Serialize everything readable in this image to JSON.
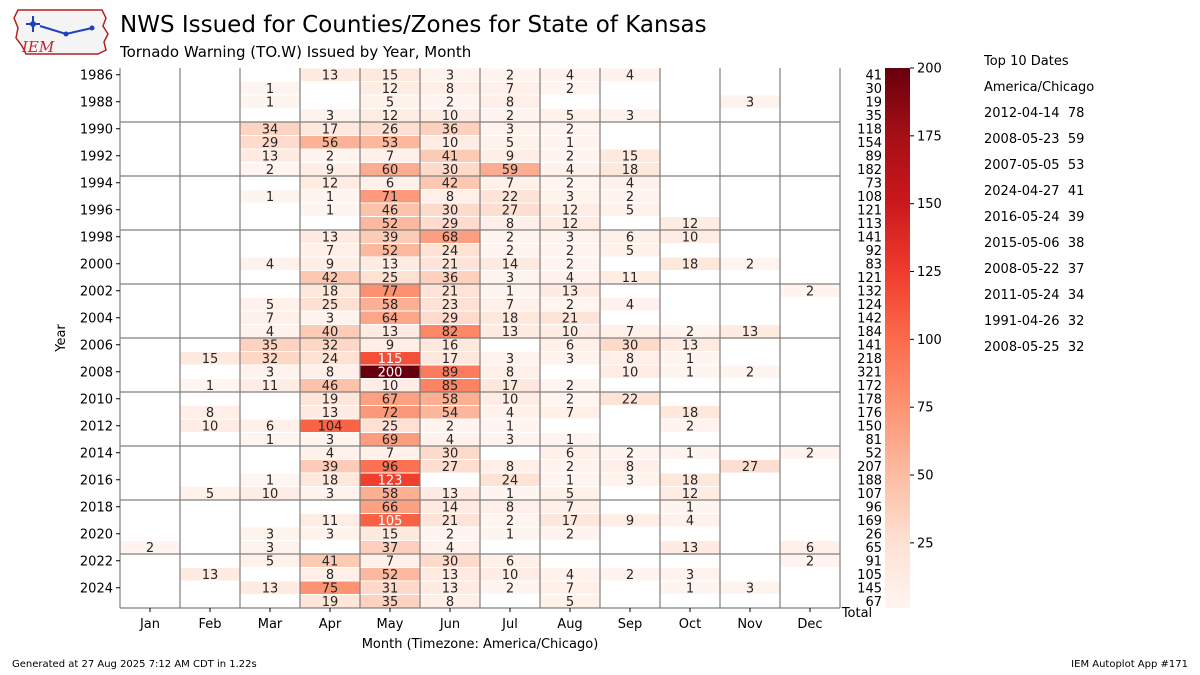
{
  "header": {
    "title": "NWS Issued for Counties/Zones for State of Kansas",
    "subtitle": "Tornado Warning (TO.W) Issued by Year, Month",
    "logo_text": "IEM"
  },
  "top10": {
    "heading": "Top 10 Dates",
    "timezone": "America/Chicago",
    "entries": [
      {
        "date": "2012-04-14",
        "count": 78
      },
      {
        "date": "2008-05-23",
        "count": 59
      },
      {
        "date": "2007-05-05",
        "count": 53
      },
      {
        "date": "2024-04-27",
        "count": 41
      },
      {
        "date": "2016-05-24",
        "count": 39
      },
      {
        "date": "2015-05-06",
        "count": 38
      },
      {
        "date": "2008-05-22",
        "count": 37
      },
      {
        "date": "2011-05-24",
        "count": 34
      },
      {
        "date": "1991-04-26",
        "count": 32
      },
      {
        "date": "2008-05-25",
        "count": 32
      }
    ]
  },
  "footer": {
    "generated": "Generated at 27 Aug 2025 7:12 AM CDT in 1.22s",
    "app": "IEM Autoplot App #171"
  },
  "chart_data": {
    "type": "heatmap",
    "xlabel": "Month (Timezone: America/Chicago)",
    "ylabel": "Year",
    "months": [
      "Jan",
      "Feb",
      "Mar",
      "Apr",
      "May",
      "Jun",
      "Jul",
      "Aug",
      "Sep",
      "Oct",
      "Nov",
      "Dec"
    ],
    "total_label": "Total",
    "years": [
      1986,
      1987,
      1988,
      1989,
      1990,
      1991,
      1992,
      1993,
      1994,
      1995,
      1996,
      1997,
      1998,
      1999,
      2000,
      2001,
      2002,
      2003,
      2004,
      2005,
      2006,
      2007,
      2008,
      2009,
      2010,
      2011,
      2012,
      2013,
      2014,
      2015,
      2016,
      2017,
      2018,
      2019,
      2020,
      2021,
      2022,
      2023,
      2024,
      2025
    ],
    "year_tick_labels": [
      "1986",
      "1988",
      "1990",
      "1992",
      "1994",
      "1996",
      "1998",
      "2000",
      "2002",
      "2004",
      "2006",
      "2008",
      "2010",
      "2012",
      "2014",
      "2016",
      "2018",
      "2020",
      "2022",
      "2024"
    ],
    "values": [
      [
        null,
        null,
        null,
        13,
        15,
        3,
        2,
        4,
        4,
        null,
        null,
        null
      ],
      [
        null,
        null,
        1,
        null,
        12,
        8,
        7,
        2,
        null,
        null,
        null,
        null
      ],
      [
        null,
        null,
        1,
        null,
        5,
        2,
        8,
        null,
        null,
        null,
        3,
        null
      ],
      [
        null,
        null,
        null,
        3,
        12,
        10,
        2,
        5,
        3,
        null,
        null,
        null
      ],
      [
        null,
        null,
        34,
        17,
        26,
        36,
        3,
        2,
        null,
        null,
        null,
        null
      ],
      [
        null,
        null,
        29,
        56,
        53,
        10,
        5,
        1,
        null,
        null,
        null,
        null
      ],
      [
        null,
        null,
        13,
        2,
        7,
        41,
        9,
        2,
        15,
        null,
        null,
        null
      ],
      [
        null,
        null,
        2,
        9,
        60,
        30,
        59,
        4,
        18,
        null,
        null,
        null
      ],
      [
        null,
        null,
        null,
        12,
        6,
        42,
        7,
        2,
        4,
        null,
        null,
        null
      ],
      [
        null,
        null,
        1,
        1,
        71,
        8,
        22,
        3,
        2,
        null,
        null,
        null
      ],
      [
        null,
        null,
        null,
        1,
        46,
        30,
        27,
        12,
        5,
        null,
        null,
        null
      ],
      [
        null,
        null,
        null,
        null,
        52,
        29,
        8,
        12,
        null,
        12,
        null,
        null
      ],
      [
        null,
        null,
        null,
        13,
        39,
        68,
        2,
        3,
        6,
        10,
        null,
        null
      ],
      [
        null,
        null,
        null,
        7,
        52,
        24,
        2,
        2,
        5,
        null,
        null,
        null
      ],
      [
        null,
        null,
        4,
        9,
        13,
        21,
        14,
        2,
        null,
        18,
        2,
        null
      ],
      [
        null,
        null,
        null,
        42,
        25,
        36,
        3,
        4,
        11,
        null,
        null,
        null
      ],
      [
        null,
        null,
        null,
        18,
        77,
        21,
        1,
        13,
        null,
        null,
        null,
        2
      ],
      [
        null,
        null,
        5,
        25,
        58,
        23,
        7,
        2,
        4,
        null,
        null,
        null
      ],
      [
        null,
        null,
        7,
        3,
        64,
        29,
        18,
        21,
        null,
        null,
        null,
        null
      ],
      [
        null,
        null,
        4,
        40,
        13,
        82,
        13,
        10,
        7,
        2,
        13,
        null
      ],
      [
        null,
        null,
        35,
        32,
        9,
        16,
        null,
        6,
        30,
        13,
        null,
        null
      ],
      [
        null,
        15,
        32,
        24,
        115,
        17,
        3,
        3,
        8,
        1,
        null,
        null
      ],
      [
        null,
        null,
        3,
        8,
        200,
        89,
        8,
        null,
        10,
        1,
        2,
        null
      ],
      [
        null,
        1,
        11,
        46,
        10,
        85,
        17,
        2,
        null,
        null,
        null,
        null
      ],
      [
        null,
        null,
        null,
        19,
        67,
        58,
        10,
        2,
        22,
        null,
        null,
        null
      ],
      [
        null,
        8,
        null,
        13,
        72,
        54,
        4,
        7,
        null,
        18,
        null,
        null
      ],
      [
        null,
        10,
        6,
        104,
        25,
        2,
        1,
        null,
        null,
        2,
        null,
        null
      ],
      [
        null,
        null,
        1,
        3,
        69,
        4,
        3,
        1,
        null,
        null,
        null,
        null
      ],
      [
        null,
        null,
        null,
        4,
        7,
        30,
        null,
        6,
        2,
        1,
        null,
        2
      ],
      [
        null,
        null,
        null,
        39,
        96,
        27,
        8,
        2,
        8,
        null,
        27,
        null
      ],
      [
        null,
        null,
        1,
        18,
        123,
        null,
        24,
        1,
        3,
        18,
        null,
        null
      ],
      [
        null,
        5,
        10,
        3,
        58,
        13,
        1,
        5,
        null,
        12,
        null,
        null
      ],
      [
        null,
        null,
        null,
        null,
        66,
        14,
        8,
        7,
        null,
        1,
        null,
        null
      ],
      [
        null,
        null,
        null,
        11,
        105,
        21,
        2,
        17,
        9,
        4,
        null,
        null
      ],
      [
        null,
        null,
        3,
        3,
        15,
        2,
        1,
        2,
        null,
        null,
        null,
        null
      ],
      [
        2,
        null,
        3,
        null,
        37,
        4,
        null,
        null,
        null,
        13,
        null,
        6
      ],
      [
        null,
        null,
        5,
        41,
        7,
        30,
        6,
        null,
        null,
        null,
        null,
        2
      ],
      [
        null,
        13,
        null,
        8,
        52,
        13,
        10,
        4,
        2,
        3,
        null,
        null
      ],
      [
        null,
        null,
        13,
        75,
        31,
        13,
        2,
        7,
        null,
        1,
        3,
        null
      ],
      [
        null,
        null,
        null,
        19,
        35,
        8,
        null,
        5,
        null,
        null,
        null,
        null
      ]
    ],
    "totals": [
      41,
      30,
      19,
      35,
      118,
      154,
      89,
      182,
      73,
      108,
      121,
      113,
      141,
      92,
      83,
      121,
      132,
      124,
      142,
      184,
      141,
      218,
      321,
      172,
      178,
      176,
      150,
      81,
      52,
      207,
      188,
      107,
      96,
      169,
      26,
      65,
      91,
      105,
      145,
      67
    ],
    "colorbar": {
      "range": [
        1,
        200
      ],
      "ticks": [
        25,
        50,
        75,
        100,
        125,
        150,
        175,
        200
      ],
      "colormap": "Reds",
      "stops": [
        "#fff5f0",
        "#fee0d2",
        "#fcbba1",
        "#fc9272",
        "#fb6a4a",
        "#ef3b2c",
        "#cb181d",
        "#a50f15",
        "#67000d"
      ]
    }
  }
}
